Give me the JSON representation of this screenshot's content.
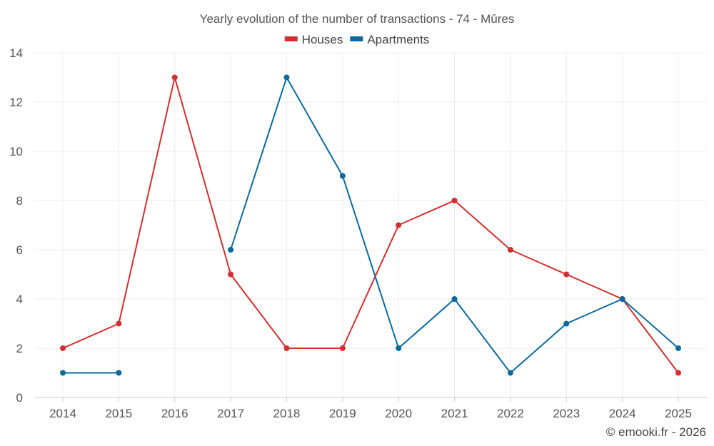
{
  "chart_data": {
    "type": "line",
    "title": "Yearly evolution of the number of transactions - 74 - Mûres",
    "categories": [
      "2014",
      "2015",
      "2016",
      "2017",
      "2018",
      "2019",
      "2020",
      "2021",
      "2022",
      "2023",
      "2024",
      "2025"
    ],
    "ylim": [
      0,
      14
    ],
    "yticks": [
      0,
      2,
      4,
      6,
      8,
      10,
      12,
      14
    ],
    "grid": true,
    "legend_position": "top-center",
    "series": [
      {
        "name": "Houses",
        "color": "#d32f2f",
        "values": [
          2,
          3,
          13,
          5,
          2,
          2,
          7,
          8,
          6,
          5,
          4,
          1
        ]
      },
      {
        "name": "Apartments",
        "color": "#0a6a9e",
        "values": [
          1,
          1,
          null,
          6,
          13,
          9,
          2,
          4,
          1,
          3,
          4,
          2
        ]
      }
    ]
  },
  "credit": "© emooki.fr - 2026"
}
